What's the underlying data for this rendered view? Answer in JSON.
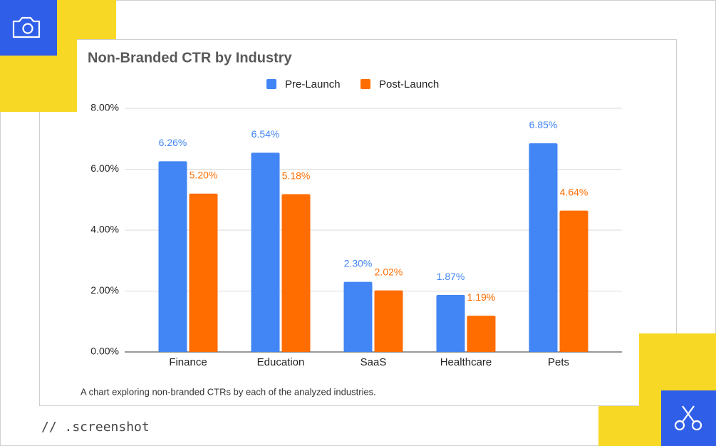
{
  "chart_data": {
    "type": "bar",
    "title": "Non-Branded CTR by Industry",
    "categories": [
      "Finance",
      "Education",
      "SaaS",
      "Healthcare",
      "Pets"
    ],
    "series": [
      {
        "name": "Pre-Launch",
        "color": "#4285f4",
        "values": [
          6.26,
          6.54,
          2.3,
          1.87,
          6.85
        ],
        "value_labels": [
          "6.26%",
          "6.54%",
          "2.30%",
          "1.87%",
          "6.85%"
        ]
      },
      {
        "name": "Post-Launch",
        "color": "#ff6d01",
        "values": [
          5.2,
          5.18,
          2.02,
          1.19,
          4.64
        ],
        "value_labels": [
          "5.20%",
          "5.18%",
          "2.02%",
          "1.19%",
          "4.64%"
        ]
      }
    ],
    "ylim": [
      0,
      8
    ],
    "yticks": [
      {
        "value": 0,
        "label": "0.00%"
      },
      {
        "value": 2,
        "label": "2.00%"
      },
      {
        "value": 4,
        "label": "4.00%"
      },
      {
        "value": 6,
        "label": "6.00%"
      },
      {
        "value": 8,
        "label": "8.00%"
      }
    ],
    "grid": true,
    "legend": "top",
    "caption": "A chart exploring non-branded CTRs by each of the analyzed industries."
  },
  "footer": "// .screenshot"
}
